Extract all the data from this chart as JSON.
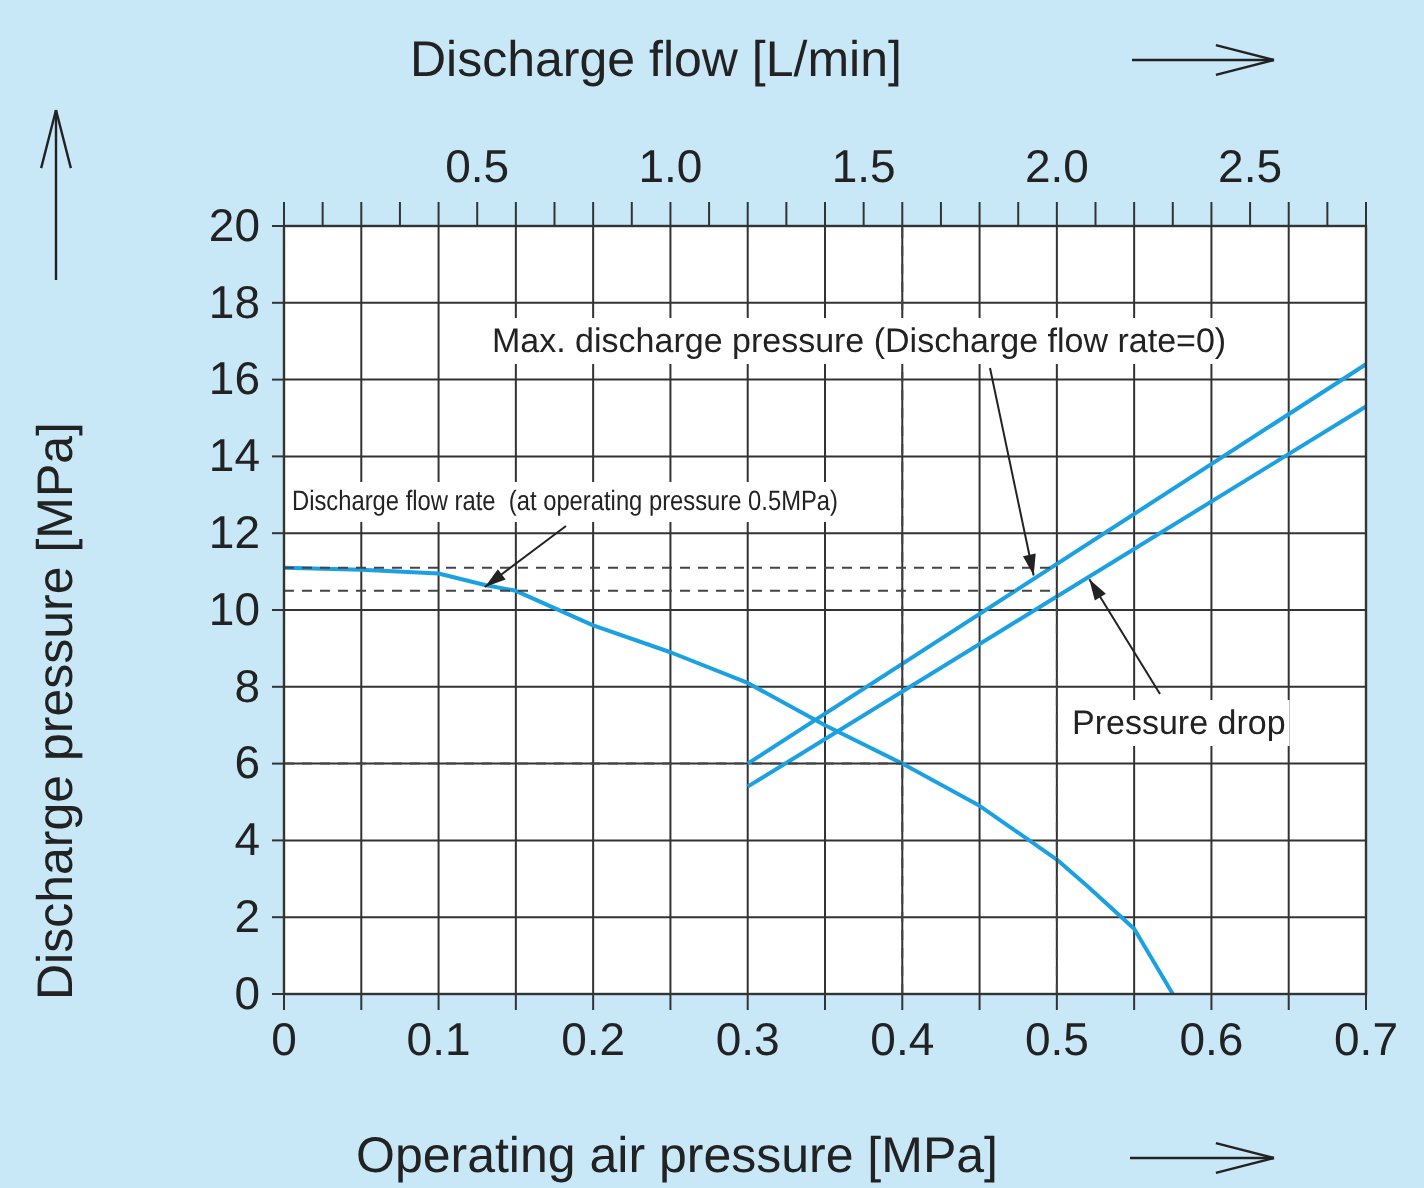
{
  "chart_data": {
    "type": "line",
    "xlabel": "Operating air pressure  [MPa]",
    "ylabel": "Discharge pressure  [MPa]",
    "x2label": "Discharge flow  [L/min]",
    "xlim": [
      0,
      0.7
    ],
    "ylim": [
      0,
      20
    ],
    "x2lim": [
      0,
      2.8
    ],
    "xticks": [
      0,
      {
        "value": 0.05,
        "label": null
      },
      0.1,
      {
        "value": 0.15,
        "label": null
      },
      0.2,
      {
        "value": 0.25,
        "label": null
      },
      0.3,
      {
        "value": 0.35,
        "label": null
      },
      0.4,
      {
        "value": 0.45,
        "label": null
      },
      0.5,
      {
        "value": 0.55,
        "label": null
      },
      0.6,
      {
        "value": 0.65,
        "label": null
      },
      0.7
    ],
    "yticks": [
      0,
      2,
      4,
      6,
      8,
      10,
      12,
      14,
      16,
      18,
      20
    ],
    "x2ticks": [
      {
        "value": 0,
        "label": null
      },
      {
        "value": 0.1,
        "label": null
      },
      {
        "value": 0.2,
        "label": null
      },
      {
        "value": 0.3,
        "label": null
      },
      {
        "value": 0.4,
        "label": null
      },
      0.5,
      {
        "value": 0.6,
        "label": null
      },
      {
        "value": 0.7,
        "label": null
      },
      {
        "value": 0.8,
        "label": null
      },
      {
        "value": 0.9,
        "label": null
      },
      {
        "value": 1.0,
        "label": "1.0"
      },
      {
        "value": 1.1,
        "label": null
      },
      {
        "value": 1.2,
        "label": null
      },
      {
        "value": 1.3,
        "label": null
      },
      {
        "value": 1.4,
        "label": null
      },
      1.5,
      {
        "value": 1.6,
        "label": null
      },
      {
        "value": 1.7,
        "label": null
      },
      {
        "value": 1.8,
        "label": null
      },
      {
        "value": 1.9,
        "label": null
      },
      {
        "value": 2.0,
        "label": "2.0"
      },
      {
        "value": 2.1,
        "label": null
      },
      {
        "value": 2.2,
        "label": null
      },
      {
        "value": 2.3,
        "label": null
      },
      {
        "value": 2.4,
        "label": null
      },
      2.5,
      {
        "value": 2.6,
        "label": null
      },
      {
        "value": 2.7,
        "label": null
      },
      {
        "value": 2.8,
        "label": null
      }
    ],
    "grid": true,
    "marker": "none",
    "series": [
      {
        "color": "#1ba1e2",
        "line_style": "solid",
        "x": [
          0,
          0.05,
          0.1,
          0.13,
          0.15,
          0.2,
          0.25,
          0.3,
          0.35,
          0.4,
          0.45,
          0.5,
          0.52,
          0.55,
          0.575
        ],
        "values": [
          11.1,
          11.05,
          10.95,
          10.65,
          10.5,
          9.6,
          8.9,
          8.1,
          7.0,
          6.0,
          4.9,
          3.5,
          2.8,
          1.7,
          0
        ]
      },
      {
        "color": "#1ba1e2",
        "line_style": "solid",
        "x": [
          0.3,
          0.7
        ],
        "values": [
          6.0,
          16.4
        ]
      },
      {
        "color": "#1ba1e2",
        "line_style": "solid",
        "x": [
          0.3,
          0.7
        ],
        "values": [
          5.4,
          15.3
        ]
      },
      {
        "color": "#444444",
        "line_style": "dashed",
        "x": [
          0,
          0.5
        ],
        "values": [
          11.1,
          11.1
        ]
      },
      {
        "color": "#444444",
        "line_style": "dashed",
        "x": [
          0,
          0.5
        ],
        "values": [
          10.5,
          10.5
        ]
      },
      {
        "color": "#444444",
        "line_style": "dashed",
        "x": [
          0,
          0.4
        ],
        "values": [
          6,
          6
        ]
      },
      {
        "color": "#444444",
        "line_style": "dashed",
        "x": [
          0.4,
          0.4
        ],
        "values": [
          0,
          20
        ]
      },
      {
        "color": "#444444",
        "line_style": "dashed",
        "x": [
          0.5,
          0.5
        ],
        "values": [
          0,
          11.1
        ]
      }
    ],
    "annotations": [
      {
        "text": "Discharge flow rate  (at operating pressure 0.5MPa)",
        "x": 0.13,
        "y": 10.6
      },
      {
        "text": "Max. discharge pressure (Discharge flow rate=0)",
        "x": 0.485,
        "y": 10.9
      },
      {
        "text": "Pressure drop",
        "x": 0.521,
        "y": 10.8
      }
    ]
  }
}
